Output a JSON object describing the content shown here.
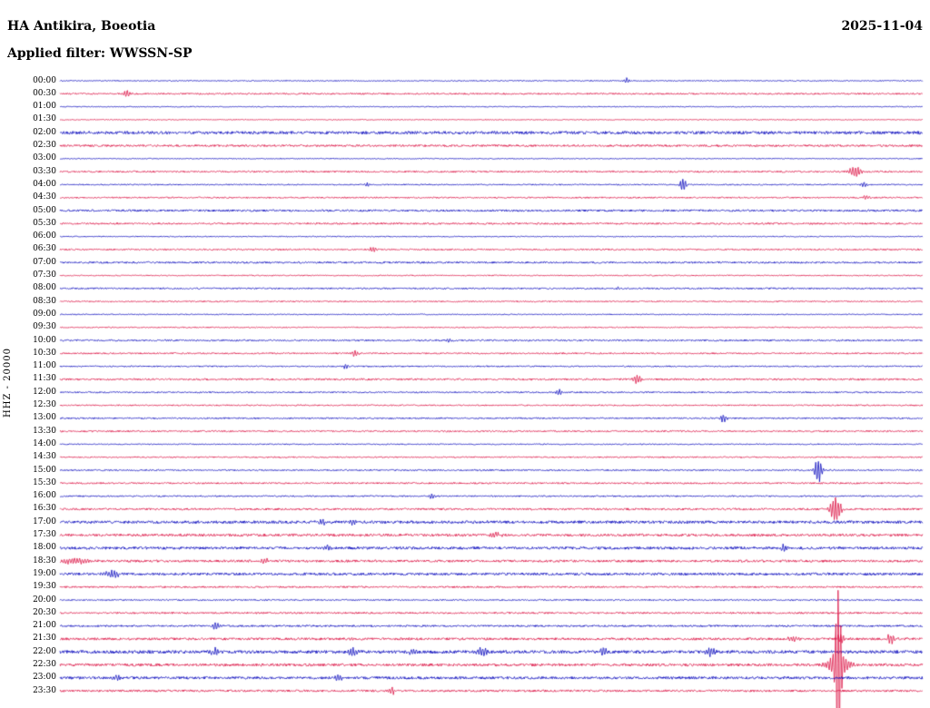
{
  "header": {
    "station": "HA Antikira, Boeotia",
    "date": "2025-11-04",
    "filter": "Applied filter: WWSSN-SP"
  },
  "axis": {
    "channel_label": "HHZ - 20000"
  },
  "chart_data": {
    "type": "line",
    "title": "HA Antikira, Boeotia helicorder record",
    "x_axis": "30 minutes per trace line",
    "legend_position": "none",
    "grid": false,
    "colors": {
      "blue": "#0d0dbe",
      "red": "#dc1445"
    },
    "rows": [
      {
        "time": "00:00",
        "color": "blue",
        "noise": 0.55,
        "events": [
          {
            "x": 0.657,
            "amp": 3,
            "w": 2
          }
        ]
      },
      {
        "time": "00:30",
        "color": "red",
        "noise": 0.85,
        "events": [
          {
            "x": 0.078,
            "amp": 4,
            "w": 2.5
          }
        ]
      },
      {
        "time": "01:00",
        "color": "blue",
        "noise": 0.5,
        "events": []
      },
      {
        "time": "01:30",
        "color": "red",
        "noise": 0.5,
        "events": []
      },
      {
        "time": "02:00",
        "color": "blue",
        "noise": 1.6,
        "events": []
      },
      {
        "time": "02:30",
        "color": "red",
        "noise": 1.1,
        "events": []
      },
      {
        "time": "03:00",
        "color": "blue",
        "noise": 0.5,
        "events": []
      },
      {
        "time": "03:30",
        "color": "red",
        "noise": 0.85,
        "events": [
          {
            "x": 0.922,
            "amp": 5,
            "w": 5
          }
        ]
      },
      {
        "time": "04:00",
        "color": "blue",
        "noise": 0.65,
        "events": [
          {
            "x": 0.356,
            "amp": 2,
            "w": 2
          },
          {
            "x": 0.722,
            "amp": 7,
            "w": 2.5
          },
          {
            "x": 0.932,
            "amp": 3,
            "w": 2.5
          }
        ]
      },
      {
        "time": "04:30",
        "color": "red",
        "noise": 0.75,
        "events": [
          {
            "x": 0.935,
            "amp": 2,
            "w": 3
          }
        ]
      },
      {
        "time": "05:00",
        "color": "blue",
        "noise": 1.05,
        "events": []
      },
      {
        "time": "05:30",
        "color": "red",
        "noise": 0.95,
        "events": []
      },
      {
        "time": "06:00",
        "color": "blue",
        "noise": 0.55,
        "events": []
      },
      {
        "time": "06:30",
        "color": "red",
        "noise": 0.8,
        "events": [
          {
            "x": 0.363,
            "amp": 3,
            "w": 2.5
          }
        ]
      },
      {
        "time": "07:00",
        "color": "blue",
        "noise": 0.95,
        "events": []
      },
      {
        "time": "07:30",
        "color": "red",
        "noise": 0.6,
        "events": []
      },
      {
        "time": "08:00",
        "color": "blue",
        "noise": 0.8,
        "events": [
          {
            "x": 0.647,
            "amp": 2.2,
            "w": 2
          }
        ]
      },
      {
        "time": "08:30",
        "color": "red",
        "noise": 0.7,
        "events": []
      },
      {
        "time": "09:00",
        "color": "blue",
        "noise": 0.55,
        "events": []
      },
      {
        "time": "09:30",
        "color": "red",
        "noise": 0.6,
        "events": []
      },
      {
        "time": "10:00",
        "color": "blue",
        "noise": 0.85,
        "events": [
          {
            "x": 0.452,
            "amp": 2.2,
            "w": 2
          }
        ]
      },
      {
        "time": "10:30",
        "color": "red",
        "noise": 0.8,
        "events": [
          {
            "x": 0.342,
            "amp": 4,
            "w": 2.5
          }
        ]
      },
      {
        "time": "11:00",
        "color": "blue",
        "noise": 0.7,
        "events": [
          {
            "x": 0.331,
            "amp": 2.5,
            "w": 2
          }
        ]
      },
      {
        "time": "11:30",
        "color": "red",
        "noise": 0.95,
        "events": [
          {
            "x": 0.669,
            "amp": 5,
            "w": 3
          }
        ]
      },
      {
        "time": "12:00",
        "color": "blue",
        "noise": 0.75,
        "events": [
          {
            "x": 0.579,
            "amp": 3.5,
            "w": 2.5
          }
        ]
      },
      {
        "time": "12:30",
        "color": "red",
        "noise": 0.7,
        "events": []
      },
      {
        "time": "13:00",
        "color": "blue",
        "noise": 0.75,
        "events": [
          {
            "x": 0.769,
            "amp": 4,
            "w": 2.5
          }
        ]
      },
      {
        "time": "13:30",
        "color": "red",
        "noise": 0.85,
        "events": []
      },
      {
        "time": "14:00",
        "color": "blue",
        "noise": 0.6,
        "events": []
      },
      {
        "time": "14:30",
        "color": "red",
        "noise": 0.7,
        "events": []
      },
      {
        "time": "15:00",
        "color": "blue",
        "noise": 0.75,
        "events": [
          {
            "x": 0.879,
            "amp": 11,
            "w": 3
          }
        ]
      },
      {
        "time": "15:30",
        "color": "red",
        "noise": 0.85,
        "events": []
      },
      {
        "time": "16:00",
        "color": "blue",
        "noise": 0.75,
        "events": [
          {
            "x": 0.431,
            "amp": 3,
            "w": 2
          }
        ]
      },
      {
        "time": "16:30",
        "color": "red",
        "noise": 1.05,
        "events": [
          {
            "x": 0.899,
            "amp": 13,
            "w": 4
          }
        ]
      },
      {
        "time": "17:00",
        "color": "blue",
        "noise": 1.5,
        "events": [
          {
            "x": 0.305,
            "amp": 2,
            "w": 5
          },
          {
            "x": 0.34,
            "amp": 2.5,
            "w": 3
          }
        ]
      },
      {
        "time": "17:30",
        "color": "red",
        "noise": 1.35,
        "events": [
          {
            "x": 0.505,
            "amp": 2.5,
            "w": 4
          }
        ]
      },
      {
        "time": "18:00",
        "color": "blue",
        "noise": 1.45,
        "events": [
          {
            "x": 0.31,
            "amp": 2.5,
            "w": 3
          },
          {
            "x": 0.838,
            "amp": 4,
            "w": 3
          }
        ]
      },
      {
        "time": "18:30",
        "color": "red",
        "noise": 1.25,
        "events": [
          {
            "x": 0.02,
            "amp": 3,
            "w": 12
          },
          {
            "x": 0.237,
            "amp": 3,
            "w": 3
          }
        ]
      },
      {
        "time": "19:00",
        "color": "blue",
        "noise": 1.35,
        "events": [
          {
            "x": 0.06,
            "amp": 3,
            "w": 8
          }
        ]
      },
      {
        "time": "19:30",
        "color": "red",
        "noise": 0.9,
        "events": []
      },
      {
        "time": "20:00",
        "color": "blue",
        "noise": 0.75,
        "events": []
      },
      {
        "time": "20:30",
        "color": "red",
        "noise": 0.95,
        "events": []
      },
      {
        "time": "21:00",
        "color": "blue",
        "noise": 0.95,
        "events": [
          {
            "x": 0.18,
            "amp": 4,
            "w": 3
          }
        ]
      },
      {
        "time": "21:30",
        "color": "red",
        "noise": 1.3,
        "events": [
          {
            "x": 0.85,
            "amp": 3,
            "w": 4
          },
          {
            "x": 0.905,
            "amp": 5,
            "w": 3
          },
          {
            "x": 0.963,
            "amp": 5,
            "w": 3
          }
        ]
      },
      {
        "time": "22:00",
        "color": "blue",
        "noise": 1.7,
        "events": [
          {
            "x": 0.18,
            "amp": 3,
            "w": 4
          },
          {
            "x": 0.34,
            "amp": 4,
            "w": 3.5
          },
          {
            "x": 0.41,
            "amp": 3,
            "w": 3.5
          },
          {
            "x": 0.49,
            "amp": 4,
            "w": 4
          },
          {
            "x": 0.63,
            "amp": 4,
            "w": 3.5
          },
          {
            "x": 0.755,
            "amp": 4,
            "w": 4
          }
        ]
      },
      {
        "time": "22:30",
        "color": "red",
        "noise": 1.4,
        "events": [
          {
            "x": 0.902,
            "amp": 75,
            "w": 2.2
          },
          {
            "x": 0.902,
            "amp": 14,
            "w": 8
          }
        ]
      },
      {
        "time": "23:00",
        "color": "blue",
        "noise": 1.4,
        "events": [
          {
            "x": 0.065,
            "amp": 2.2,
            "w": 5
          },
          {
            "x": 0.322,
            "amp": 3.5,
            "w": 3
          }
        ]
      },
      {
        "time": "23:30",
        "color": "red",
        "noise": 1.1,
        "events": [
          {
            "x": 0.385,
            "amp": 4,
            "w": 2.5
          }
        ]
      }
    ]
  }
}
